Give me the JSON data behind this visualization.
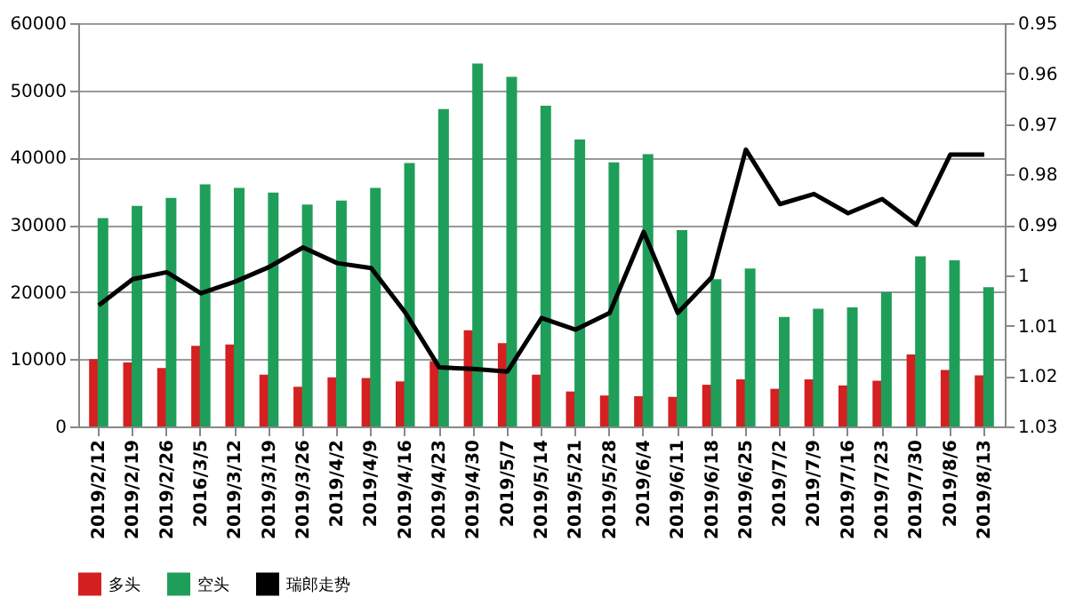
{
  "chart_data": {
    "type": "bar",
    "categories": [
      "2019/2/12",
      "2019/2/19",
      "2019/2/26",
      "2016/3/5",
      "2019/3/12",
      "2019/3/19",
      "2019/3/26",
      "2019/4/2",
      "2019/4/9",
      "2019/4/16",
      "2019/4/23",
      "2019/4/30",
      "2019/5/7",
      "2019/5/14",
      "2019/5/21",
      "2019/5/28",
      "2019/6/4",
      "2019/6/11",
      "2019/6/18",
      "2019/6/25",
      "2019/7/2",
      "2019/7/9",
      "2019/7/16",
      "2019/7/23",
      "2019/7/30",
      "2019/8/6",
      "2019/8/13"
    ],
    "series": [
      {
        "name": "多头",
        "color": "#d42020",
        "values": [
          10000,
          9500,
          8700,
          12000,
          12200,
          7700,
          5900,
          7300,
          7200,
          6700,
          9700,
          14300,
          12400,
          7700,
          5200,
          4600,
          4500,
          4400,
          6200,
          7000,
          5600,
          7000,
          6100,
          6800,
          10700,
          8400,
          7600
        ]
      },
      {
        "name": "空头",
        "color": "#1f9e5a",
        "values": [
          31000,
          32800,
          34000,
          36000,
          35500,
          34800,
          33000,
          33600,
          35500,
          39200,
          47200,
          54000,
          52000,
          47700,
          42700,
          39300,
          40500,
          29200,
          21900,
          23500,
          16300,
          17500,
          17700,
          20000,
          25300,
          24700,
          20700
        ]
      },
      {
        "name": "瑞郎走势",
        "type": "line",
        "axis": "y2",
        "color": "#000000",
        "values": [
          1.006,
          1.0008,
          0.9994,
          1.0036,
          1.0013,
          0.9984,
          0.9945,
          0.9976,
          0.9986,
          1.0074,
          1.0183,
          1.0186,
          1.0191,
          1.0085,
          1.0108,
          1.0075,
          0.9914,
          1.0075,
          1.0004,
          0.9751,
          0.9859,
          0.9839,
          0.9877,
          0.9849,
          0.99,
          0.9761,
          0.9761
        ]
      }
    ],
    "ylim": [
      0,
      60000
    ],
    "yticks": [
      0,
      10000,
      20000,
      30000,
      40000,
      50000,
      60000
    ],
    "y2lim": [
      1.03,
      0.95
    ],
    "y2ticks": [
      1.03,
      1.02,
      1.01,
      1,
      0.99,
      0.98,
      0.97,
      0.96,
      0.95
    ],
    "grid": "y",
    "legend": "bottom",
    "marker": "none",
    "line_style": "solid"
  }
}
